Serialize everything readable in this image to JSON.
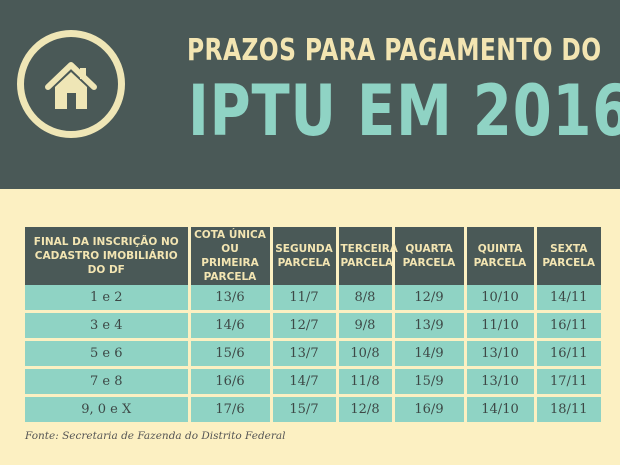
{
  "title": {
    "line1": "PRAZOS PARA PAGAMENTO DO",
    "line2": "IPTU EM 2016"
  },
  "icon": "house-icon",
  "colors": {
    "header_bg": "#4a5957",
    "page_bg": "#fcf0c2",
    "accent_teal": "#8fd3c4",
    "title_cream": "#f3e5b2"
  },
  "table": {
    "headers": [
      "Final da inscrição no cadastro imobiliário do DF",
      "Cota única ou primeira parcela",
      "Segunda parcela",
      "Terceira parcela",
      "Quarta parcela",
      "Quinta parcela",
      "Sexta parcela"
    ],
    "rows": [
      [
        "1 e 2",
        "13/6",
        "11/7",
        "8/8",
        "12/9",
        "10/10",
        "14/11"
      ],
      [
        "3 e 4",
        "14/6",
        "12/7",
        "9/8",
        "13/9",
        "11/10",
        "16/11"
      ],
      [
        "5 e 6",
        "15/6",
        "13/7",
        "10/8",
        "14/9",
        "13/10",
        "16/11"
      ],
      [
        "7 e 8",
        "16/6",
        "14/7",
        "11/8",
        "15/9",
        "13/10",
        "17/11"
      ],
      [
        "9, 0 e X",
        "17/6",
        "15/7",
        "12/8",
        "16/9",
        "14/10",
        "18/11"
      ]
    ]
  },
  "source": "Fonte: Secretaria de Fazenda do Distrito Federal"
}
